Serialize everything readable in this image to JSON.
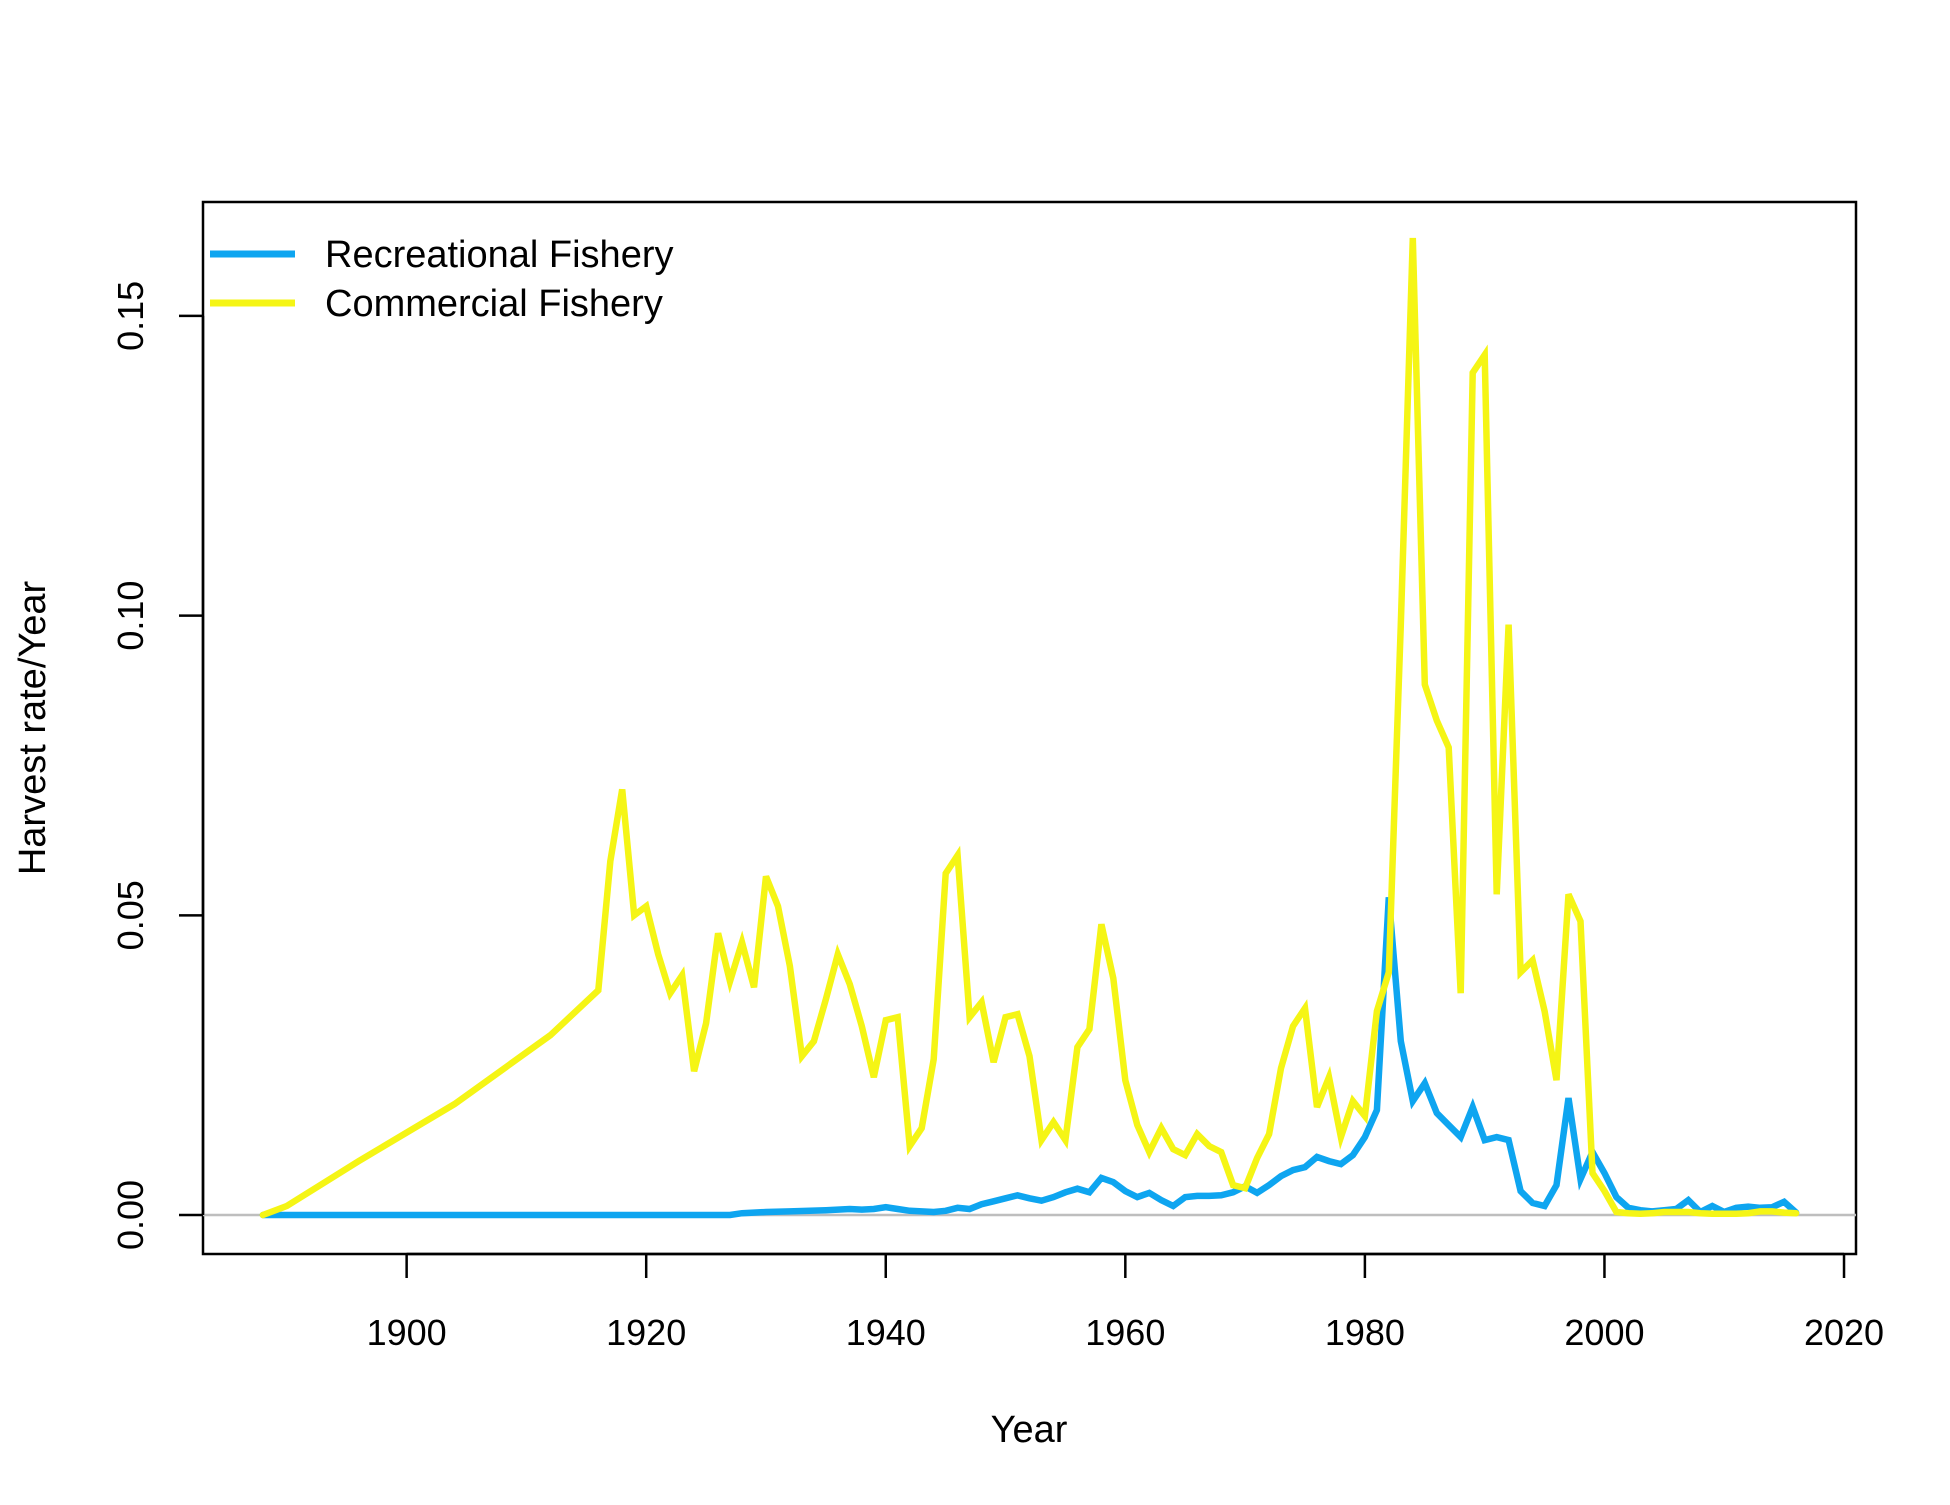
{
  "chart_data": {
    "type": "line",
    "xlabel": "Year",
    "ylabel": "Harvest rate/Year",
    "xlim": [
      1883,
      2021
    ],
    "ylim": [
      -0.0065,
      0.169
    ],
    "xticks": [
      1900,
      1920,
      1940,
      1960,
      1980,
      2000,
      2020
    ],
    "yticks": [
      0.0,
      0.05,
      0.1,
      0.15
    ],
    "ytick_labels": [
      "0.00",
      "0.05",
      "0.10",
      "0.15"
    ],
    "reference_line": {
      "y": 0,
      "color": "#bebebe"
    },
    "legend_position": "top-left",
    "series": [
      {
        "name": "Recreational Fishery",
        "color": "#0ea5f0",
        "x": [
          1888,
          1900,
          1910,
          1920,
          1927,
          1928,
          1930,
          1932,
          1935,
          1937,
          1938,
          1939,
          1940,
          1941,
          1942,
          1943,
          1944,
          1945,
          1946,
          1947,
          1948,
          1949,
          1950,
          1951,
          1952,
          1953,
          1954,
          1955,
          1956,
          1957,
          1958,
          1959,
          1960,
          1961,
          1962,
          1963,
          1964,
          1965,
          1966,
          1967,
          1968,
          1969,
          1970,
          1971,
          1972,
          1973,
          1974,
          1975,
          1976,
          1977,
          1978,
          1979,
          1980,
          1981,
          1982,
          1983,
          1984,
          1985,
          1986,
          1987,
          1988,
          1989,
          1990,
          1991,
          1992,
          1993,
          1994,
          1995,
          1996,
          1997,
          1998,
          1999,
          2000,
          2001,
          2002,
          2003,
          2004,
          2005,
          2006,
          2007,
          2008,
          2009,
          2010,
          2011,
          2012,
          2013,
          2014,
          2015,
          2016
        ],
        "y": [
          0.0,
          0.0,
          0.0,
          0.0,
          0.0,
          0.0003,
          0.0005,
          0.0006,
          0.0008,
          0.001,
          0.0009,
          0.001,
          0.0013,
          0.001,
          0.0007,
          0.0006,
          0.0005,
          0.0007,
          0.0012,
          0.001,
          0.0018,
          0.0023,
          0.0028,
          0.0033,
          0.0028,
          0.0024,
          0.003,
          0.0038,
          0.0044,
          0.0038,
          0.0062,
          0.0055,
          0.004,
          0.003,
          0.0037,
          0.0025,
          0.0015,
          0.003,
          0.0032,
          0.0032,
          0.0033,
          0.0038,
          0.0048,
          0.0037,
          0.005,
          0.0065,
          0.0075,
          0.008,
          0.0097,
          0.009,
          0.0085,
          0.01,
          0.013,
          0.0175,
          0.053,
          0.029,
          0.019,
          0.022,
          0.017,
          0.015,
          0.013,
          0.018,
          0.0125,
          0.013,
          0.0125,
          0.004,
          0.002,
          0.0015,
          0.005,
          0.0195,
          0.006,
          0.0105,
          0.007,
          0.003,
          0.0012,
          0.0008,
          0.0006,
          0.0008,
          0.001,
          0.0025,
          0.0005,
          0.0015,
          0.0005,
          0.0012,
          0.0014,
          0.0012,
          0.0013,
          0.0022,
          0.0004
        ]
      },
      {
        "name": "Commercial Fishery",
        "color": "#f5f515",
        "x": [
          1888,
          1890,
          1896,
          1904,
          1912,
          1916,
          1917,
          1918,
          1919,
          1920,
          1921,
          1922,
          1923,
          1924,
          1925,
          1926,
          1927,
          1928,
          1929,
          1930,
          1931,
          1932,
          1933,
          1934,
          1935,
          1936,
          1937,
          1938,
          1939,
          1940,
          1941,
          1942,
          1943,
          1944,
          1945,
          1946,
          1947,
          1948,
          1949,
          1950,
          1951,
          1952,
          1953,
          1954,
          1955,
          1956,
          1957,
          1958,
          1959,
          1960,
          1961,
          1962,
          1963,
          1964,
          1965,
          1966,
          1967,
          1968,
          1969,
          1970,
          1971,
          1972,
          1973,
          1974,
          1975,
          1976,
          1977,
          1978,
          1979,
          1980,
          1981,
          1982,
          1983,
          1984,
          1985,
          1986,
          1987,
          1988,
          1989,
          1990,
          1991,
          1992,
          1993,
          1994,
          1995,
          1996,
          1997,
          1998,
          1999,
          2000,
          2001,
          2002,
          2003,
          2004,
          2005,
          2006,
          2007,
          2008,
          2009,
          2010,
          2011,
          2012,
          2013,
          2014,
          2015,
          2016
        ],
        "y": [
          0.0,
          0.0015,
          0.009,
          0.0185,
          0.03,
          0.0375,
          0.059,
          0.071,
          0.05,
          0.0515,
          0.0435,
          0.037,
          0.04,
          0.024,
          0.032,
          0.047,
          0.039,
          0.0455,
          0.038,
          0.0565,
          0.0515,
          0.0415,
          0.0265,
          0.029,
          0.036,
          0.0435,
          0.0385,
          0.0315,
          0.023,
          0.0325,
          0.033,
          0.0115,
          0.0145,
          0.026,
          0.057,
          0.06,
          0.033,
          0.0355,
          0.0255,
          0.033,
          0.0335,
          0.0265,
          0.0125,
          0.0155,
          0.0125,
          0.028,
          0.031,
          0.0485,
          0.0395,
          0.0225,
          0.015,
          0.0105,
          0.0145,
          0.011,
          0.01,
          0.0135,
          0.0115,
          0.0105,
          0.005,
          0.0045,
          0.0095,
          0.0135,
          0.0245,
          0.0315,
          0.0345,
          0.018,
          0.023,
          0.013,
          0.019,
          0.0165,
          0.034,
          0.0405,
          0.0985,
          0.163,
          0.0885,
          0.0825,
          0.078,
          0.037,
          0.1405,
          0.1435,
          0.0535,
          0.0985,
          0.0405,
          0.0425,
          0.034,
          0.0225,
          0.0535,
          0.049,
          0.007,
          0.004,
          0.0005,
          0.0003,
          0.0002,
          0.0003,
          0.0005,
          0.0005,
          0.0005,
          0.0003,
          0.0002,
          0.0002,
          0.0002,
          0.0003,
          0.0006,
          0.0006,
          0.0004,
          0.0003
        ]
      }
    ]
  }
}
